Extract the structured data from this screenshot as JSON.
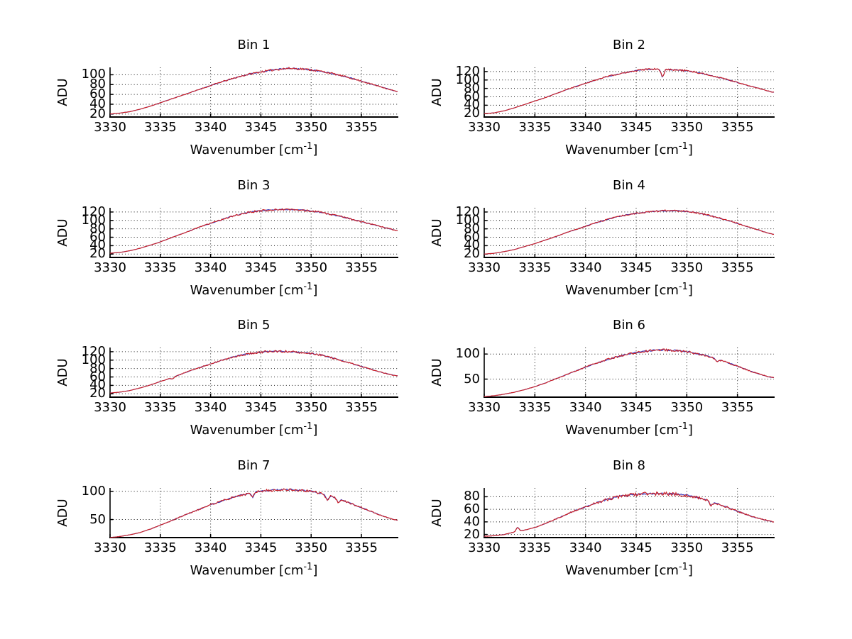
{
  "figure": {
    "background": "#ffffff"
  },
  "chart_data": {
    "type": "line",
    "layout": "4x2 grid of subplots",
    "grid": "dotted",
    "xlabel": "Wavenumber [cm^-1]",
    "xlabel_main": "Wavenumber [cm",
    "xlabel_sup": "-1",
    "xlabel_end": "]",
    "ylabel": "ADU",
    "xlim": [
      3330,
      3358.6
    ],
    "x_ticks": [
      3330,
      3335,
      3340,
      3345,
      3350,
      3355
    ],
    "x_control": [
      3330,
      3331,
      3332,
      3333,
      3334,
      3335,
      3336,
      3337,
      3338,
      3339,
      3340,
      3341,
      3342,
      3343,
      3344,
      3345,
      3346,
      3347,
      3348,
      3349,
      3350,
      3351,
      3352,
      3353,
      3354,
      3355,
      3356,
      3357,
      3358,
      3358.5
    ],
    "colors": {
      "data_line": "#cc2227",
      "underlay_line": "#3333bb",
      "axis": "#000000",
      "grid": "#1a1a1a",
      "background": "#ffffff"
    },
    "subplots": [
      {
        "title": "Bin 1",
        "y_ticks": [
          20,
          40,
          60,
          80,
          100
        ],
        "ylim": [
          14,
          115
        ],
        "noise_amp": 2.2,
        "spikes": [],
        "values": [
          20,
          22,
          25,
          30,
          36,
          43,
          50,
          57,
          64,
          71,
          78,
          85,
          91,
          97,
          102,
          106,
          109,
          112,
          113,
          112,
          110,
          107,
          103,
          98,
          93,
          87,
          81,
          75,
          69,
          66
        ]
      },
      {
        "title": "Bin 2",
        "y_ticks": [
          20,
          40,
          60,
          80,
          100,
          120
        ],
        "ylim": [
          12,
          130
        ],
        "noise_amp": 2.2,
        "spikes": [
          {
            "x": 3347.6,
            "dy": -20
          }
        ],
        "values": [
          20,
          22,
          27,
          34,
          42,
          50,
          58,
          67,
          76,
          84,
          92,
          100,
          107,
          113,
          118,
          122,
          125,
          126,
          125,
          124,
          122,
          118,
          113,
          107,
          101,
          94,
          87,
          81,
          74,
          71
        ]
      },
      {
        "title": "Bin 3",
        "y_ticks": [
          20,
          40,
          60,
          80,
          100,
          120
        ],
        "ylim": [
          12,
          130
        ],
        "noise_amp": 2.5,
        "spikes": [],
        "values": [
          22,
          24,
          28,
          34,
          41,
          49,
          58,
          67,
          76,
          85,
          93,
          101,
          109,
          115,
          120,
          123,
          125,
          126,
          126,
          125,
          122,
          119,
          114,
          109,
          103,
          97,
          91,
          85,
          79,
          76
        ]
      },
      {
        "title": "Bin 4",
        "y_ticks": [
          20,
          40,
          60,
          80,
          100,
          120
        ],
        "ylim": [
          12,
          130
        ],
        "noise_amp": 2.2,
        "spikes": [],
        "values": [
          20,
          22,
          26,
          31,
          38,
          45,
          53,
          61,
          70,
          78,
          86,
          94,
          101,
          108,
          113,
          117,
          120,
          122,
          123,
          123,
          121,
          118,
          113,
          107,
          100,
          93,
          85,
          78,
          70,
          67
        ]
      },
      {
        "title": "Bin 5",
        "y_ticks": [
          20,
          40,
          60,
          80,
          100,
          120
        ],
        "ylim": [
          12,
          130
        ],
        "noise_amp": 2.5,
        "spikes": [
          {
            "x": 3336.2,
            "dy": -4
          }
        ],
        "values": [
          22,
          24,
          28,
          34,
          41,
          49,
          57,
          66,
          75,
          83,
          91,
          99,
          106,
          112,
          116,
          119,
          121,
          121,
          120,
          118,
          116,
          112,
          106,
          99,
          92,
          85,
          78,
          71,
          65,
          63
        ]
      },
      {
        "title": "Bin 6",
        "y_ticks": [
          50,
          100
        ],
        "ylim": [
          14,
          113
        ],
        "noise_amp": 2.5,
        "spikes": [
          {
            "x": 3353.0,
            "dy": -6
          }
        ],
        "values": [
          15,
          17,
          20,
          24,
          29,
          35,
          42,
          50,
          58,
          66,
          74,
          81,
          88,
          94,
          99,
          103,
          106,
          108,
          108,
          107,
          105,
          101,
          96,
          90,
          83,
          76,
          68,
          61,
          55,
          53
        ]
      },
      {
        "title": "Bin 7",
        "y_ticks": [
          50,
          100
        ],
        "ylim": [
          18,
          106
        ],
        "noise_amp": 2.5,
        "spikes": [
          {
            "x": 3344.2,
            "dy": -8
          },
          {
            "x": 3351.6,
            "dy": -9
          },
          {
            "x": 3352.7,
            "dy": -8
          }
        ],
        "values": [
          18,
          20,
          23,
          27,
          33,
          40,
          47,
          55,
          62,
          69,
          76,
          82,
          88,
          93,
          97,
          100,
          102,
          103,
          103,
          102,
          100,
          96,
          91,
          85,
          78,
          71,
          64,
          57,
          51,
          49
        ]
      },
      {
        "title": "Bin 8",
        "y_ticks": [
          20,
          40,
          60,
          80
        ],
        "ylim": [
          15,
          94
        ],
        "noise_amp": 2.8,
        "spikes": [
          {
            "x": 3333.3,
            "dy": 7
          },
          {
            "x": 3352.4,
            "dy": -7
          }
        ],
        "values": [
          17,
          18,
          20,
          24,
          27,
          31,
          37,
          44,
          51,
          58,
          64,
          70,
          75,
          79,
          82,
          84,
          85,
          85,
          85,
          84,
          82,
          79,
          74,
          69,
          63,
          57,
          51,
          46,
          42,
          40
        ]
      }
    ]
  }
}
